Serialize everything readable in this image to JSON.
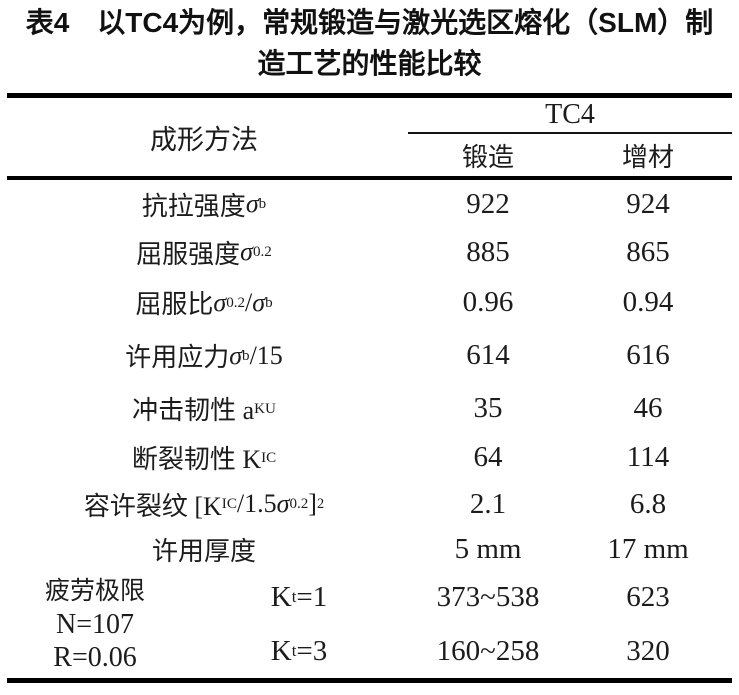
{
  "title": {
    "line1": "表4　以TC4为例，常规锻造与激光选区熔化（SLM）制",
    "line2": "造工艺的性能比较"
  },
  "table": {
    "method_header": "成形方法",
    "group_header": "TC4",
    "col_headers": [
      "锻造",
      "增材"
    ],
    "rows": [
      {
        "label": [
          {
            "t": "抗拉强度 "
          },
          {
            "i": "σ"
          },
          {
            "sub": "b"
          }
        ],
        "forge": "922",
        "am": "924"
      },
      {
        "label": [
          {
            "t": "屈服强度 "
          },
          {
            "i": "σ"
          },
          {
            "sub": "0.2"
          }
        ],
        "forge": "885",
        "am": "865"
      },
      {
        "label": [
          {
            "t": "屈服比 "
          },
          {
            "i": "σ"
          },
          {
            "sub": "0.2"
          },
          {
            "t": "/"
          },
          {
            "i": "σ"
          },
          {
            "sub": "b"
          }
        ],
        "forge": "0.96",
        "am": "0.94"
      },
      {
        "label": [
          {
            "t": "许用应力 "
          },
          {
            "i": "σ"
          },
          {
            "sub": "b"
          },
          {
            "t": "/15"
          }
        ],
        "forge": "614",
        "am": "616"
      },
      {
        "label": [
          {
            "t": "冲击韧性  a"
          },
          {
            "sub": "KU"
          }
        ],
        "forge": "35",
        "am": "46"
      },
      {
        "label": [
          {
            "t": "断裂韧性  K"
          },
          {
            "sub": "IC"
          }
        ],
        "forge": "64",
        "am": "114"
      },
      {
        "label": [
          {
            "t": "容许裂纹  [K"
          },
          {
            "sub": "IC"
          },
          {
            "t": "/1.5"
          },
          {
            "i": "σ"
          },
          {
            "sub": "0.2"
          },
          {
            "t": "]"
          },
          {
            "sup": "2"
          }
        ],
        "forge": "2.1",
        "am": "6.8"
      },
      {
        "label": [
          {
            "t": "许用厚度"
          }
        ],
        "forge": "5 mm",
        "am": "17 mm"
      }
    ],
    "fatigue": {
      "label_lines": [
        "疲劳极限",
        "N=107",
        "R=0.06"
      ],
      "sub_rows": [
        {
          "label": [
            {
              "t": "K"
            },
            {
              "sub": "t"
            },
            {
              "t": "=1"
            }
          ],
          "forge": "373~538",
          "am": "623"
        },
        {
          "label": [
            {
              "t": "K"
            },
            {
              "sub": "t"
            },
            {
              "t": "=3"
            }
          ],
          "forge": "160~258",
          "am": "320"
        }
      ]
    }
  },
  "colors": {
    "rule": "#000000",
    "text": "#1c1c1c",
    "background": "#ffffff"
  }
}
